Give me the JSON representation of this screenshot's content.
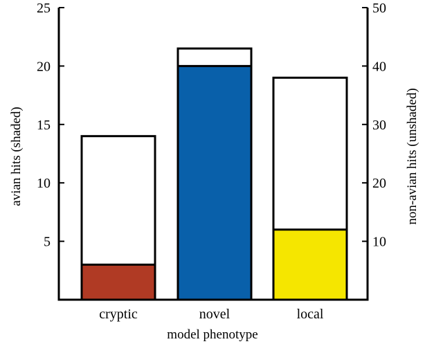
{
  "chart_data": {
    "type": "bar",
    "categories": [
      "cryptic",
      "novel",
      "local"
    ],
    "series": [
      {
        "name": "avian hits (shaded)",
        "axis": "left",
        "values": [
          3,
          20,
          6
        ],
        "colors": [
          "#b03a24",
          "#0960aa",
          "#f5e600"
        ]
      },
      {
        "name": "non-avian hits (unshaded)",
        "axis": "right",
        "values": [
          28,
          43,
          38
        ],
        "color": "#ffffff"
      }
    ],
    "xlabel": "model phenotype",
    "ylabel": "avian hits (shaded)",
    "ylabel_right": "non-avian hits (unshaded)",
    "ylim": [
      0,
      25
    ],
    "ylim_right": [
      0,
      50
    ],
    "yticks": [
      "5",
      "10",
      "15",
      "20",
      "25"
    ],
    "yticks_right": [
      "10",
      "20",
      "30",
      "40",
      "50"
    ],
    "grid": false,
    "legend": "none"
  }
}
